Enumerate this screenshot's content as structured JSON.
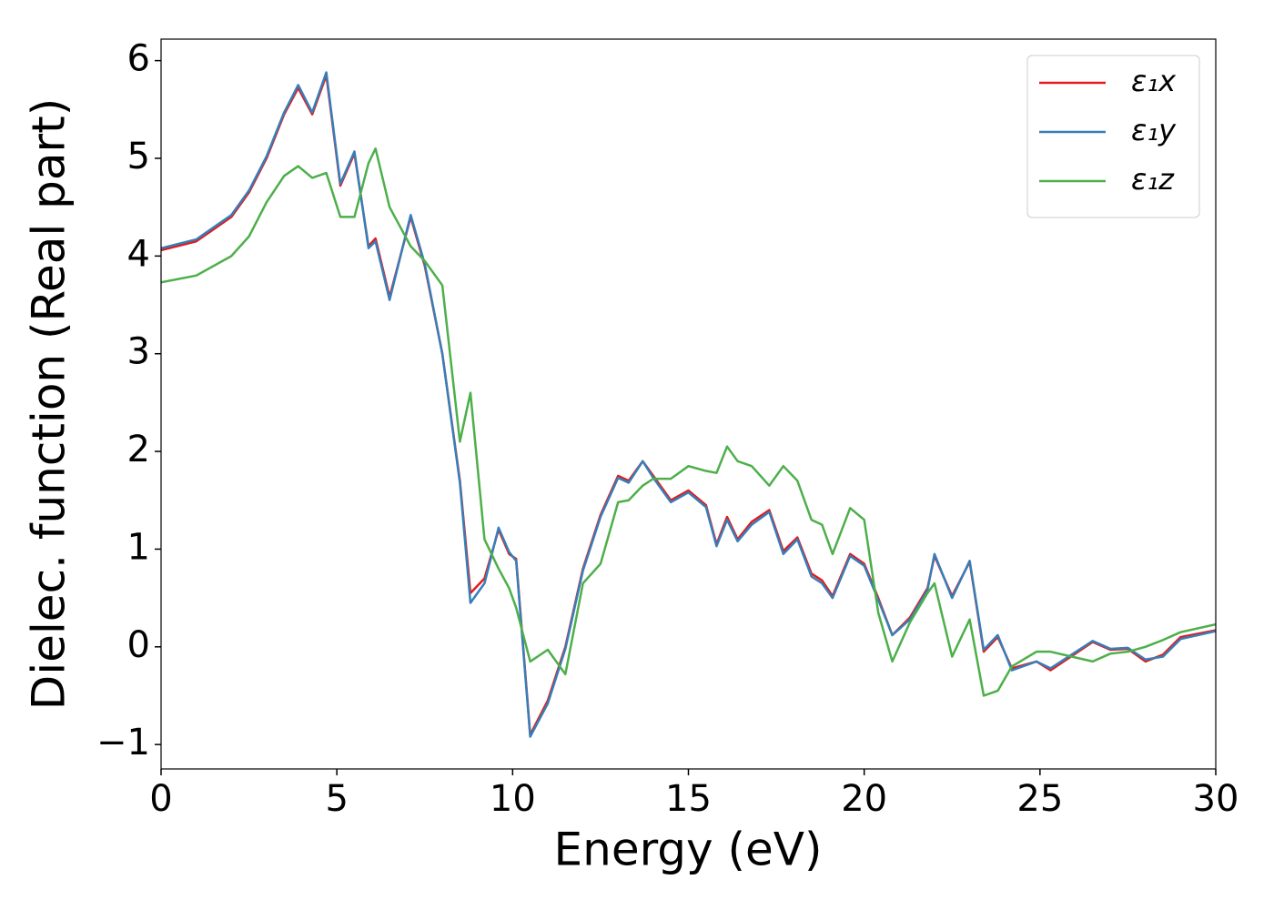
{
  "chart_data": {
    "type": "line",
    "x_label": "Energy (eV)",
    "y_label": "Dielec. function (Real part)",
    "xlim": [
      0,
      30
    ],
    "ylim": [
      -1.25,
      6.22
    ],
    "xticks": [
      0,
      5,
      10,
      15,
      20,
      25,
      30
    ],
    "yticks": [
      {
        "value": -1,
        "label": "−1"
      },
      0,
      1,
      2,
      3,
      4,
      5,
      6
    ],
    "legend": "upper right",
    "x": [
      0,
      1,
      2,
      2.5,
      3,
      3.5,
      3.9,
      4.3,
      4.7,
      5.1,
      5.5,
      5.9,
      6.1,
      6.5,
      7.1,
      7.5,
      8.0,
      8.5,
      8.8,
      9.2,
      9.6,
      9.9,
      10.1,
      10.5,
      11.0,
      11.5,
      12.0,
      12.5,
      13.0,
      13.3,
      13.7,
      14.0,
      14.5,
      15.0,
      15.5,
      15.8,
      16.1,
      16.4,
      16.8,
      17.3,
      17.7,
      18.1,
      18.5,
      18.8,
      19.1,
      19.6,
      20.0,
      20.4,
      20.8,
      21.3,
      21.8,
      22.0,
      22.5,
      23.0,
      23.4,
      23.8,
      24.2,
      24.9,
      25.3,
      26.5,
      27.0,
      27.5,
      28.0,
      28.5,
      29.0,
      30.0
    ],
    "series": [
      {
        "name": "ε₁x",
        "color": "#e41a1c",
        "values": [
          4.06,
          4.15,
          4.4,
          4.65,
          5.0,
          5.45,
          5.72,
          5.45,
          5.85,
          4.72,
          5.05,
          4.1,
          4.18,
          3.58,
          4.4,
          3.9,
          3.0,
          1.7,
          0.55,
          0.7,
          1.2,
          0.95,
          0.9,
          -0.9,
          -0.55,
          0.0,
          0.8,
          1.35,
          1.75,
          1.7,
          1.9,
          1.75,
          1.5,
          1.6,
          1.45,
          1.05,
          1.33,
          1.1,
          1.28,
          1.4,
          0.98,
          1.12,
          0.75,
          0.68,
          0.52,
          0.95,
          0.85,
          0.5,
          0.12,
          0.3,
          0.6,
          0.93,
          0.52,
          0.87,
          -0.05,
          0.1,
          -0.22,
          -0.15,
          -0.24,
          0.05,
          -0.03,
          -0.02,
          -0.15,
          -0.08,
          0.1,
          0.17
        ]
      },
      {
        "name": "ε₁y",
        "color": "#377eb8",
        "values": [
          4.08,
          4.17,
          4.42,
          4.67,
          5.02,
          5.47,
          5.75,
          5.47,
          5.88,
          4.74,
          5.07,
          4.08,
          4.15,
          3.55,
          4.42,
          3.92,
          3.0,
          1.68,
          0.45,
          0.65,
          1.22,
          0.97,
          0.88,
          -0.92,
          -0.58,
          -0.02,
          0.78,
          1.33,
          1.73,
          1.68,
          1.9,
          1.73,
          1.48,
          1.58,
          1.43,
          1.03,
          1.3,
          1.08,
          1.25,
          1.38,
          0.95,
          1.1,
          0.72,
          0.65,
          0.5,
          0.93,
          0.83,
          0.48,
          0.12,
          0.28,
          0.58,
          0.95,
          0.5,
          0.88,
          -0.03,
          0.12,
          -0.24,
          -0.15,
          -0.22,
          0.06,
          -0.02,
          -0.01,
          -0.13,
          -0.1,
          0.08,
          0.16
        ]
      },
      {
        "name": "ε₁z",
        "color": "#4daf4a",
        "values": [
          3.73,
          3.8,
          4.0,
          4.2,
          4.55,
          4.82,
          4.92,
          4.8,
          4.85,
          4.4,
          4.4,
          4.95,
          5.1,
          4.5,
          4.1,
          3.95,
          3.7,
          2.1,
          2.6,
          1.1,
          0.8,
          0.6,
          0.4,
          -0.15,
          -0.03,
          -0.28,
          0.65,
          0.85,
          1.48,
          1.5,
          1.65,
          1.72,
          1.72,
          1.85,
          1.8,
          1.78,
          2.05,
          1.9,
          1.85,
          1.65,
          1.85,
          1.7,
          1.3,
          1.25,
          0.95,
          1.42,
          1.3,
          0.35,
          -0.15,
          0.25,
          0.55,
          0.65,
          -0.1,
          0.28,
          -0.5,
          -0.45,
          -0.2,
          -0.05,
          -0.05,
          -0.15,
          -0.07,
          -0.05,
          0.0,
          0.07,
          0.15,
          0.23
        ]
      }
    ]
  }
}
